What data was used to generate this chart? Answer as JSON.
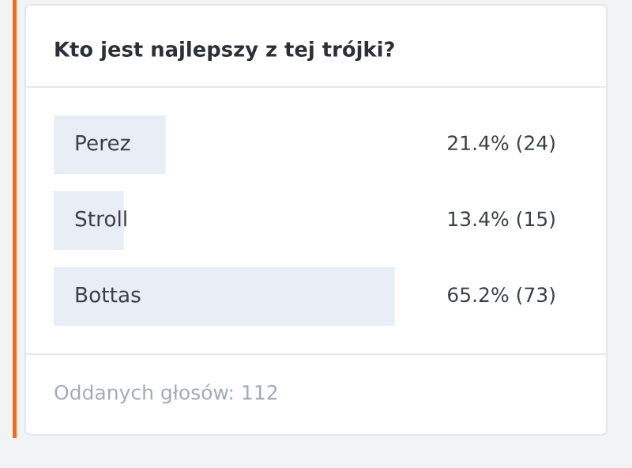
{
  "chart_data": {
    "type": "bar",
    "orientation": "horizontal",
    "title": "Kto jest najlepszy z tej trójki?",
    "categories": [
      "Perez",
      "Stroll",
      "Bottas"
    ],
    "values": [
      21.4,
      13.4,
      65.2
    ],
    "value_labels": [
      "21.4% (24)",
      "13.4% (15)",
      "65.2% (73)"
    ],
    "color": "#e8edf6",
    "annotations": [
      "Oddanych głosów: 112"
    ]
  }
}
